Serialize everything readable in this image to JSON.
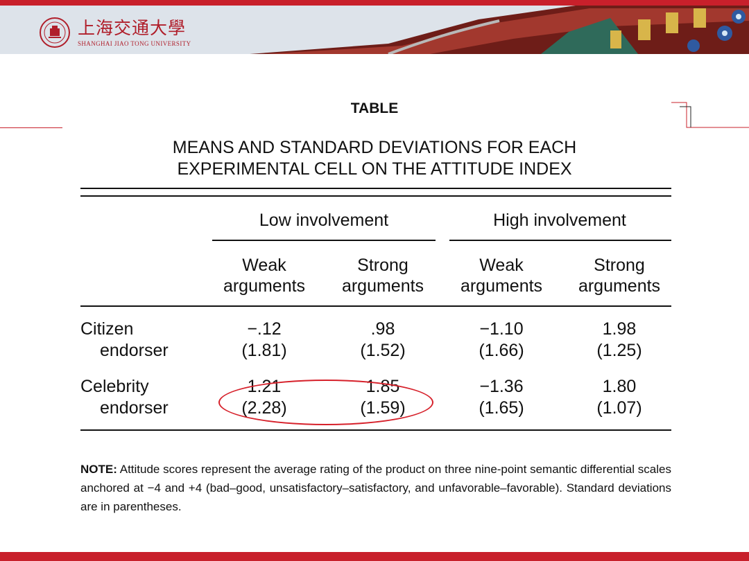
{
  "header": {
    "university_cn": "上海交通大學",
    "university_en": "SHANGHAI JIAO TONG UNIVERSITY"
  },
  "table": {
    "title": "TABLE",
    "caption_line1": "MEANS AND STANDARD DEVIATIONS FOR EACH",
    "caption_line2": "EXPERIMENTAL CELL ON THE ATTITUDE INDEX",
    "groups": [
      {
        "label": "Low involvement"
      },
      {
        "label": "High involvement"
      }
    ],
    "columns": [
      {
        "line1": "Weak",
        "line2": "arguments"
      },
      {
        "line1": "Strong",
        "line2": "arguments"
      },
      {
        "line1": "Weak",
        "line2": "arguments"
      },
      {
        "line1": "Strong",
        "line2": "arguments"
      }
    ],
    "rows": [
      {
        "label1": "Citizen",
        "label2": "endorser",
        "cells": [
          {
            "mean": "−.12",
            "sd": "(1.81)"
          },
          {
            "mean": ".98",
            "sd": "(1.52)"
          },
          {
            "mean": "−1.10",
            "sd": "(1.66)"
          },
          {
            "mean": "1.98",
            "sd": "(1.25)"
          }
        ]
      },
      {
        "label1": "Celebrity",
        "label2": "endorser",
        "cells": [
          {
            "mean": "1.21",
            "sd": "(2.28)"
          },
          {
            "mean": "1.85",
            "sd": "(1.59)"
          },
          {
            "mean": "−1.36",
            "sd": "(1.65)"
          },
          {
            "mean": "1.80",
            "sd": "(1.07)"
          }
        ]
      }
    ],
    "note_label": "NOTE:",
    "note_text": "Attitude scores represent the average rating of the product on three nine-point semantic differential scales anchored at −4 and +4 (bad–good, unsatisfactory–satisfactory, and unfavorable–favorable). Standard deviations are in parentheses."
  },
  "colors": {
    "brand_red": "#c8202b",
    "highlight_circle": "#d6202a"
  },
  "icons": {
    "logo": "university-seal-icon"
  }
}
